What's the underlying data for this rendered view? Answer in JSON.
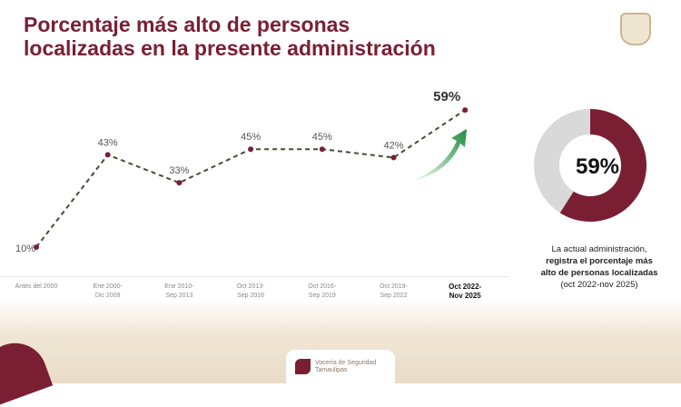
{
  "title": [
    "Porcentaje más alto de personas",
    "localizadas en la presente administración"
  ],
  "colors": {
    "accent": "#7a1f33",
    "line": "#4a4a35",
    "grey": "#d9d9d9",
    "arrow": "#1f8a3a"
  },
  "chart_data": {
    "type": "line",
    "categories": [
      "Antes del 2000",
      "Ene 2000-\nDic 2009",
      "Ene 2010-\nSep 2013",
      "Oct 2013-\nSep 2016",
      "Oct 2016-\nSep 2019",
      "Oct 2019-\nSep 2022",
      "Oct 2022-\nNov 2025"
    ],
    "values": [
      10,
      43,
      33,
      45,
      45,
      42,
      59
    ],
    "labels": [
      "10%",
      "43%",
      "33%",
      "45%",
      "45%",
      "42%",
      "59%"
    ],
    "ylim": [
      0,
      70
    ],
    "grid": false
  },
  "donut": {
    "type": "pie",
    "value": 59,
    "label": "59%"
  },
  "caption": {
    "line1": "La actual administración,",
    "bold1": "registra el porcentaje más",
    "bold2": "alto de personas localizadas",
    "line2": "(oct 2022-nov 2025)"
  },
  "footer": {
    "line1": "Vocería de Seguridad",
    "line2": "Tamaulipas"
  }
}
